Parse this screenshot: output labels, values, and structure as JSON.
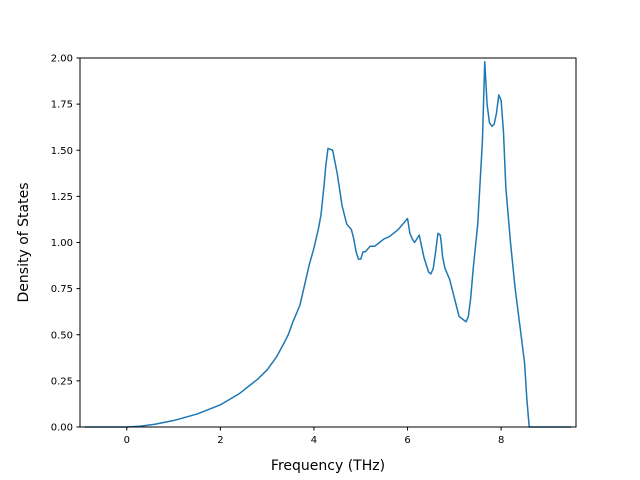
{
  "chart_data": {
    "type": "line",
    "title": "",
    "xlabel": "Frequency (THz)",
    "ylabel": "Density of States",
    "xlim": [
      -1.0,
      9.6
    ],
    "ylim": [
      0.0,
      2.0
    ],
    "xticks": [
      0,
      2,
      4,
      6,
      8
    ],
    "xtick_labels": [
      "0",
      "2",
      "4",
      "6",
      "8"
    ],
    "yticks": [
      0.0,
      0.25,
      0.5,
      0.75,
      1.0,
      1.25,
      1.5,
      1.75,
      2.0
    ],
    "ytick_labels": [
      "0.00",
      "0.25",
      "0.50",
      "0.75",
      "1.00",
      "1.25",
      "1.50",
      "1.75",
      "2.00"
    ],
    "grid": false,
    "line_color": "#1f77b4",
    "series": [
      {
        "x": [
          -0.9,
          -0.5,
          0.0,
          0.3,
          0.6,
          1.0,
          1.5,
          2.0,
          2.4,
          2.8,
          3.0,
          3.2,
          3.35,
          3.45,
          3.55,
          3.6,
          3.7,
          3.8,
          3.9,
          4.0,
          4.1,
          4.15,
          4.22,
          4.25,
          4.3,
          4.4,
          4.5,
          4.6,
          4.7,
          4.8,
          4.85,
          4.9,
          4.95,
          5.0,
          5.05,
          5.1,
          5.2,
          5.3,
          5.4,
          5.5,
          5.6,
          5.7,
          5.8,
          5.9,
          6.0,
          6.05,
          6.1,
          6.15,
          6.25,
          6.3,
          6.35,
          6.4,
          6.45,
          6.5,
          6.55,
          6.6,
          6.65,
          6.7,
          6.72,
          6.75,
          6.8,
          6.9,
          7.0,
          7.1,
          7.2,
          7.25,
          7.3,
          7.35,
          7.4,
          7.5,
          7.6,
          7.65,
          7.7,
          7.75,
          7.8,
          7.85,
          7.9,
          7.95,
          8.0,
          8.05,
          8.1,
          8.2,
          8.3,
          8.4,
          8.5,
          8.55,
          8.6,
          8.62,
          8.65,
          9.0,
          9.5
        ],
        "y": [
          0.0,
          0.0,
          0.0,
          0.005,
          0.015,
          0.035,
          0.07,
          0.12,
          0.18,
          0.26,
          0.31,
          0.38,
          0.45,
          0.5,
          0.57,
          0.6,
          0.66,
          0.77,
          0.88,
          0.97,
          1.08,
          1.15,
          1.32,
          1.41,
          1.51,
          1.5,
          1.37,
          1.2,
          1.1,
          1.07,
          1.02,
          0.95,
          0.91,
          0.91,
          0.95,
          0.95,
          0.98,
          0.98,
          1.0,
          1.02,
          1.03,
          1.05,
          1.07,
          1.1,
          1.13,
          1.05,
          1.02,
          1.0,
          1.04,
          0.98,
          0.92,
          0.88,
          0.84,
          0.83,
          0.86,
          0.95,
          1.05,
          1.04,
          1.0,
          0.92,
          0.86,
          0.8,
          0.7,
          0.6,
          0.58,
          0.57,
          0.6,
          0.7,
          0.85,
          1.1,
          1.55,
          1.98,
          1.75,
          1.65,
          1.63,
          1.64,
          1.7,
          1.8,
          1.77,
          1.6,
          1.3,
          1.0,
          0.75,
          0.55,
          0.35,
          0.15,
          0.0,
          0.0,
          0.0,
          0.0,
          0.0
        ]
      }
    ]
  }
}
